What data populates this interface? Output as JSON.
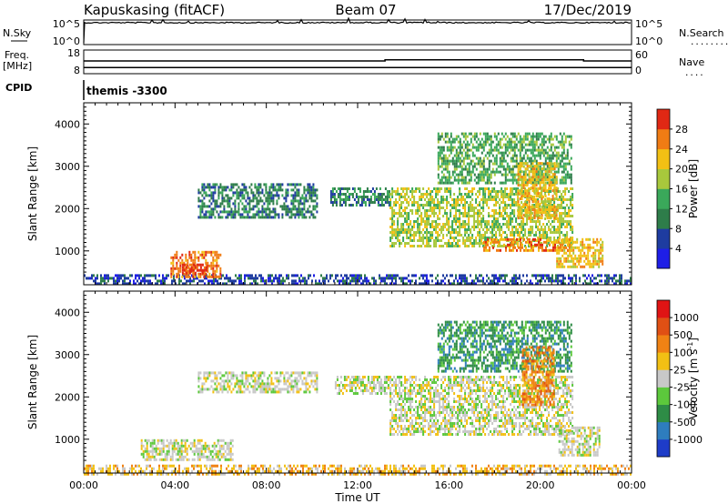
{
  "header": {
    "station": "Kapuskasing (fitACF)",
    "beam": "Beam 07",
    "date": "17/Dec/2019"
  },
  "nsky_panel": {
    "left_label": "N.Sky",
    "left_ticks": [
      "10^5",
      "10^0"
    ],
    "right_label": "N.Search",
    "right_dots": "........",
    "right_ticks": [
      "10^5",
      "10^0"
    ],
    "nsky_level_log10": 4.8,
    "nsearch_level_log10": 4.8
  },
  "freq_panel": {
    "left_label_line1": "Freq.",
    "left_label_line2": "[MHz]",
    "left_ticks": [
      "18",
      "8"
    ],
    "right_label": "Nave",
    "right_dots": "....",
    "right_ticks": [
      "60",
      "0"
    ],
    "freq_mhz": 10.5,
    "nave_series": [
      {
        "t": 0,
        "v": 34
      },
      {
        "t": 13.2,
        "v": 34
      },
      {
        "t": 13.2,
        "v": 37
      },
      {
        "t": 21.9,
        "v": 37
      },
      {
        "t": 21.9,
        "v": 34
      },
      {
        "t": 24,
        "v": 34
      }
    ]
  },
  "cpid": {
    "label": "CPID",
    "value": "themis -3300"
  },
  "x_axis": {
    "label": "Time UT",
    "ticks": [
      "00:00",
      "04:00",
      "08:00",
      "12:00",
      "16:00",
      "20:00",
      "00:00"
    ]
  },
  "chart_data": [
    {
      "type": "heatmap",
      "name": "power",
      "ylabel": "Slant Range [km]",
      "xlim": [
        0,
        24
      ],
      "ylim": [
        200,
        4500
      ],
      "yticks": [
        "1000",
        "2000",
        "3000",
        "4000"
      ],
      "colorbar": {
        "label": "Power [dB]",
        "ticks": [
          "4",
          "8",
          "12",
          "16",
          "20",
          "24",
          "28"
        ],
        "colors": [
          "#1e1ee6",
          "#1e3ca0",
          "#2e7d4a",
          "#3aa85a",
          "#a8c83c",
          "#f2c014",
          "#f07c14",
          "#e02814"
        ]
      },
      "regions": [
        {
          "t0": 0,
          "t1": 24,
          "r0": 200,
          "r1": 450,
          "level": 1,
          "note": "ground scatter band"
        },
        {
          "t0": 3.8,
          "t1": 6.0,
          "r0": 400,
          "r1": 1000,
          "level": 6
        },
        {
          "t0": 4.3,
          "t1": 5.4,
          "r0": 450,
          "r1": 700,
          "level": 7
        },
        {
          "t0": 5.0,
          "t1": 10.2,
          "r0": 1800,
          "r1": 2600,
          "level": 2
        },
        {
          "t0": 10.8,
          "t1": 13.4,
          "r0": 2100,
          "r1": 2500,
          "level": 2
        },
        {
          "t0": 13.4,
          "t1": 21.4,
          "r0": 1100,
          "r1": 2500,
          "level": 4
        },
        {
          "t0": 15.5,
          "t1": 21.4,
          "r0": 2600,
          "r1": 3800,
          "level": 3
        },
        {
          "t0": 19.0,
          "t1": 20.7,
          "r0": 1800,
          "r1": 3100,
          "level": 5
        },
        {
          "t0": 17.5,
          "t1": 21.4,
          "r0": 1000,
          "r1": 1300,
          "level": 6
        },
        {
          "t0": 20.7,
          "t1": 22.7,
          "r0": 600,
          "r1": 1300,
          "level": 5
        }
      ]
    },
    {
      "type": "heatmap",
      "name": "velocity",
      "ylabel": "Slant Range [km]",
      "xlim": [
        0,
        24
      ],
      "ylim": [
        200,
        4500
      ],
      "yticks": [
        "1000",
        "2000",
        "3000",
        "4000"
      ],
      "colorbar": {
        "label": "Velocity [m s^-1]",
        "ticks": [
          "1000",
          "500",
          "100",
          "25",
          "-25",
          "-100",
          "-500",
          "-1000"
        ],
        "colors": [
          "#1e3cc8",
          "#2e7dbe",
          "#2e8c46",
          "#5cc83c",
          "#c8c8c8",
          "#f2c014",
          "#f08214",
          "#e05014",
          "#e01414"
        ]
      },
      "regions": [
        {
          "t0": 0,
          "t1": 24,
          "r0": 200,
          "r1": 400,
          "level": 5
        },
        {
          "t0": 2.5,
          "t1": 6.5,
          "r0": 500,
          "r1": 1000,
          "level": 4
        },
        {
          "t0": 5.0,
          "t1": 10.2,
          "r0": 2100,
          "r1": 2600,
          "level": 4
        },
        {
          "t0": 11.0,
          "t1": 13.4,
          "r0": 2100,
          "r1": 2500,
          "level": 4
        },
        {
          "t0": 13.4,
          "t1": 21.4,
          "r0": 1100,
          "r1": 2500,
          "level": 4
        },
        {
          "t0": 15.5,
          "t1": 21.4,
          "r0": 2600,
          "r1": 3800,
          "level": 2
        },
        {
          "t0": 19.2,
          "t1": 20.6,
          "r0": 1800,
          "r1": 3200,
          "level": 6
        },
        {
          "t0": 20.8,
          "t1": 22.6,
          "r0": 600,
          "r1": 1300,
          "level": 4
        }
      ]
    }
  ]
}
